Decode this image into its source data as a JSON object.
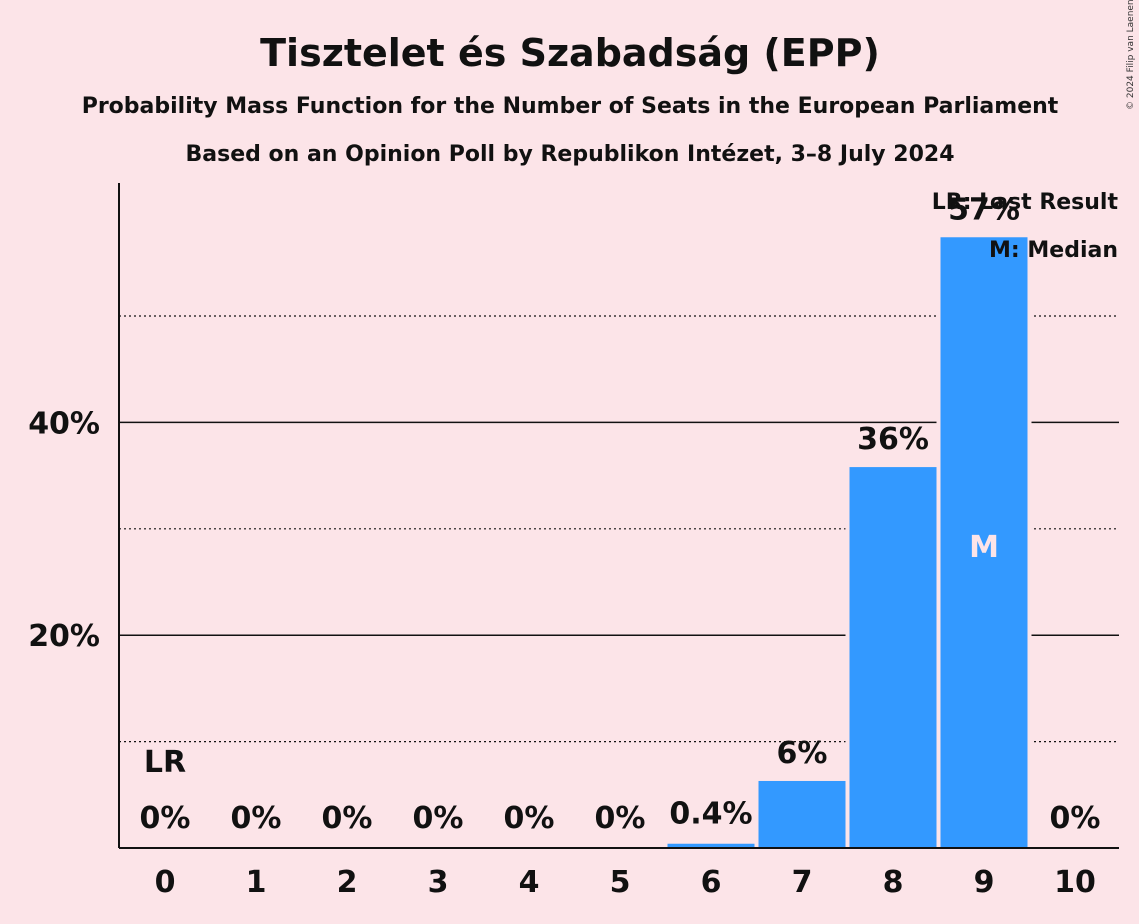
{
  "chart_data": {
    "type": "bar",
    "title": "Tisztelet és Szabadság (EPP)",
    "subtitle1": "Probability Mass Function for the Number of Seats in the European Parliament",
    "subtitle2": "Based on an Opinion Poll by Republikon Intézet, 3–8 July 2024",
    "copyright": "© 2024 Filip van Laenen",
    "categories": [
      "0",
      "1",
      "2",
      "3",
      "4",
      "5",
      "6",
      "7",
      "8",
      "9",
      "10"
    ],
    "values": [
      0,
      0,
      0,
      0,
      0,
      0,
      0.4,
      6.3,
      35.8,
      57.4,
      0
    ],
    "value_labels": [
      "0%",
      "0%",
      "0%",
      "0%",
      "0%",
      "0%",
      "0.4%",
      "6%",
      "36%",
      "57%",
      "0%"
    ],
    "ylim": [
      0,
      62.5
    ],
    "y_ticks_major": [
      20,
      40
    ],
    "y_tick_labels": [
      "20%",
      "40%"
    ],
    "y_ticks_minor": [
      10,
      30,
      50
    ],
    "last_result_index": 0,
    "last_result_marker": "LR",
    "median_index": 9,
    "median_marker": "M",
    "legend": [
      "LR: Last Result",
      "M: Median"
    ],
    "colors": {
      "bar": "#3399ff",
      "background": "#fce4e8",
      "text": "#111111"
    }
  }
}
